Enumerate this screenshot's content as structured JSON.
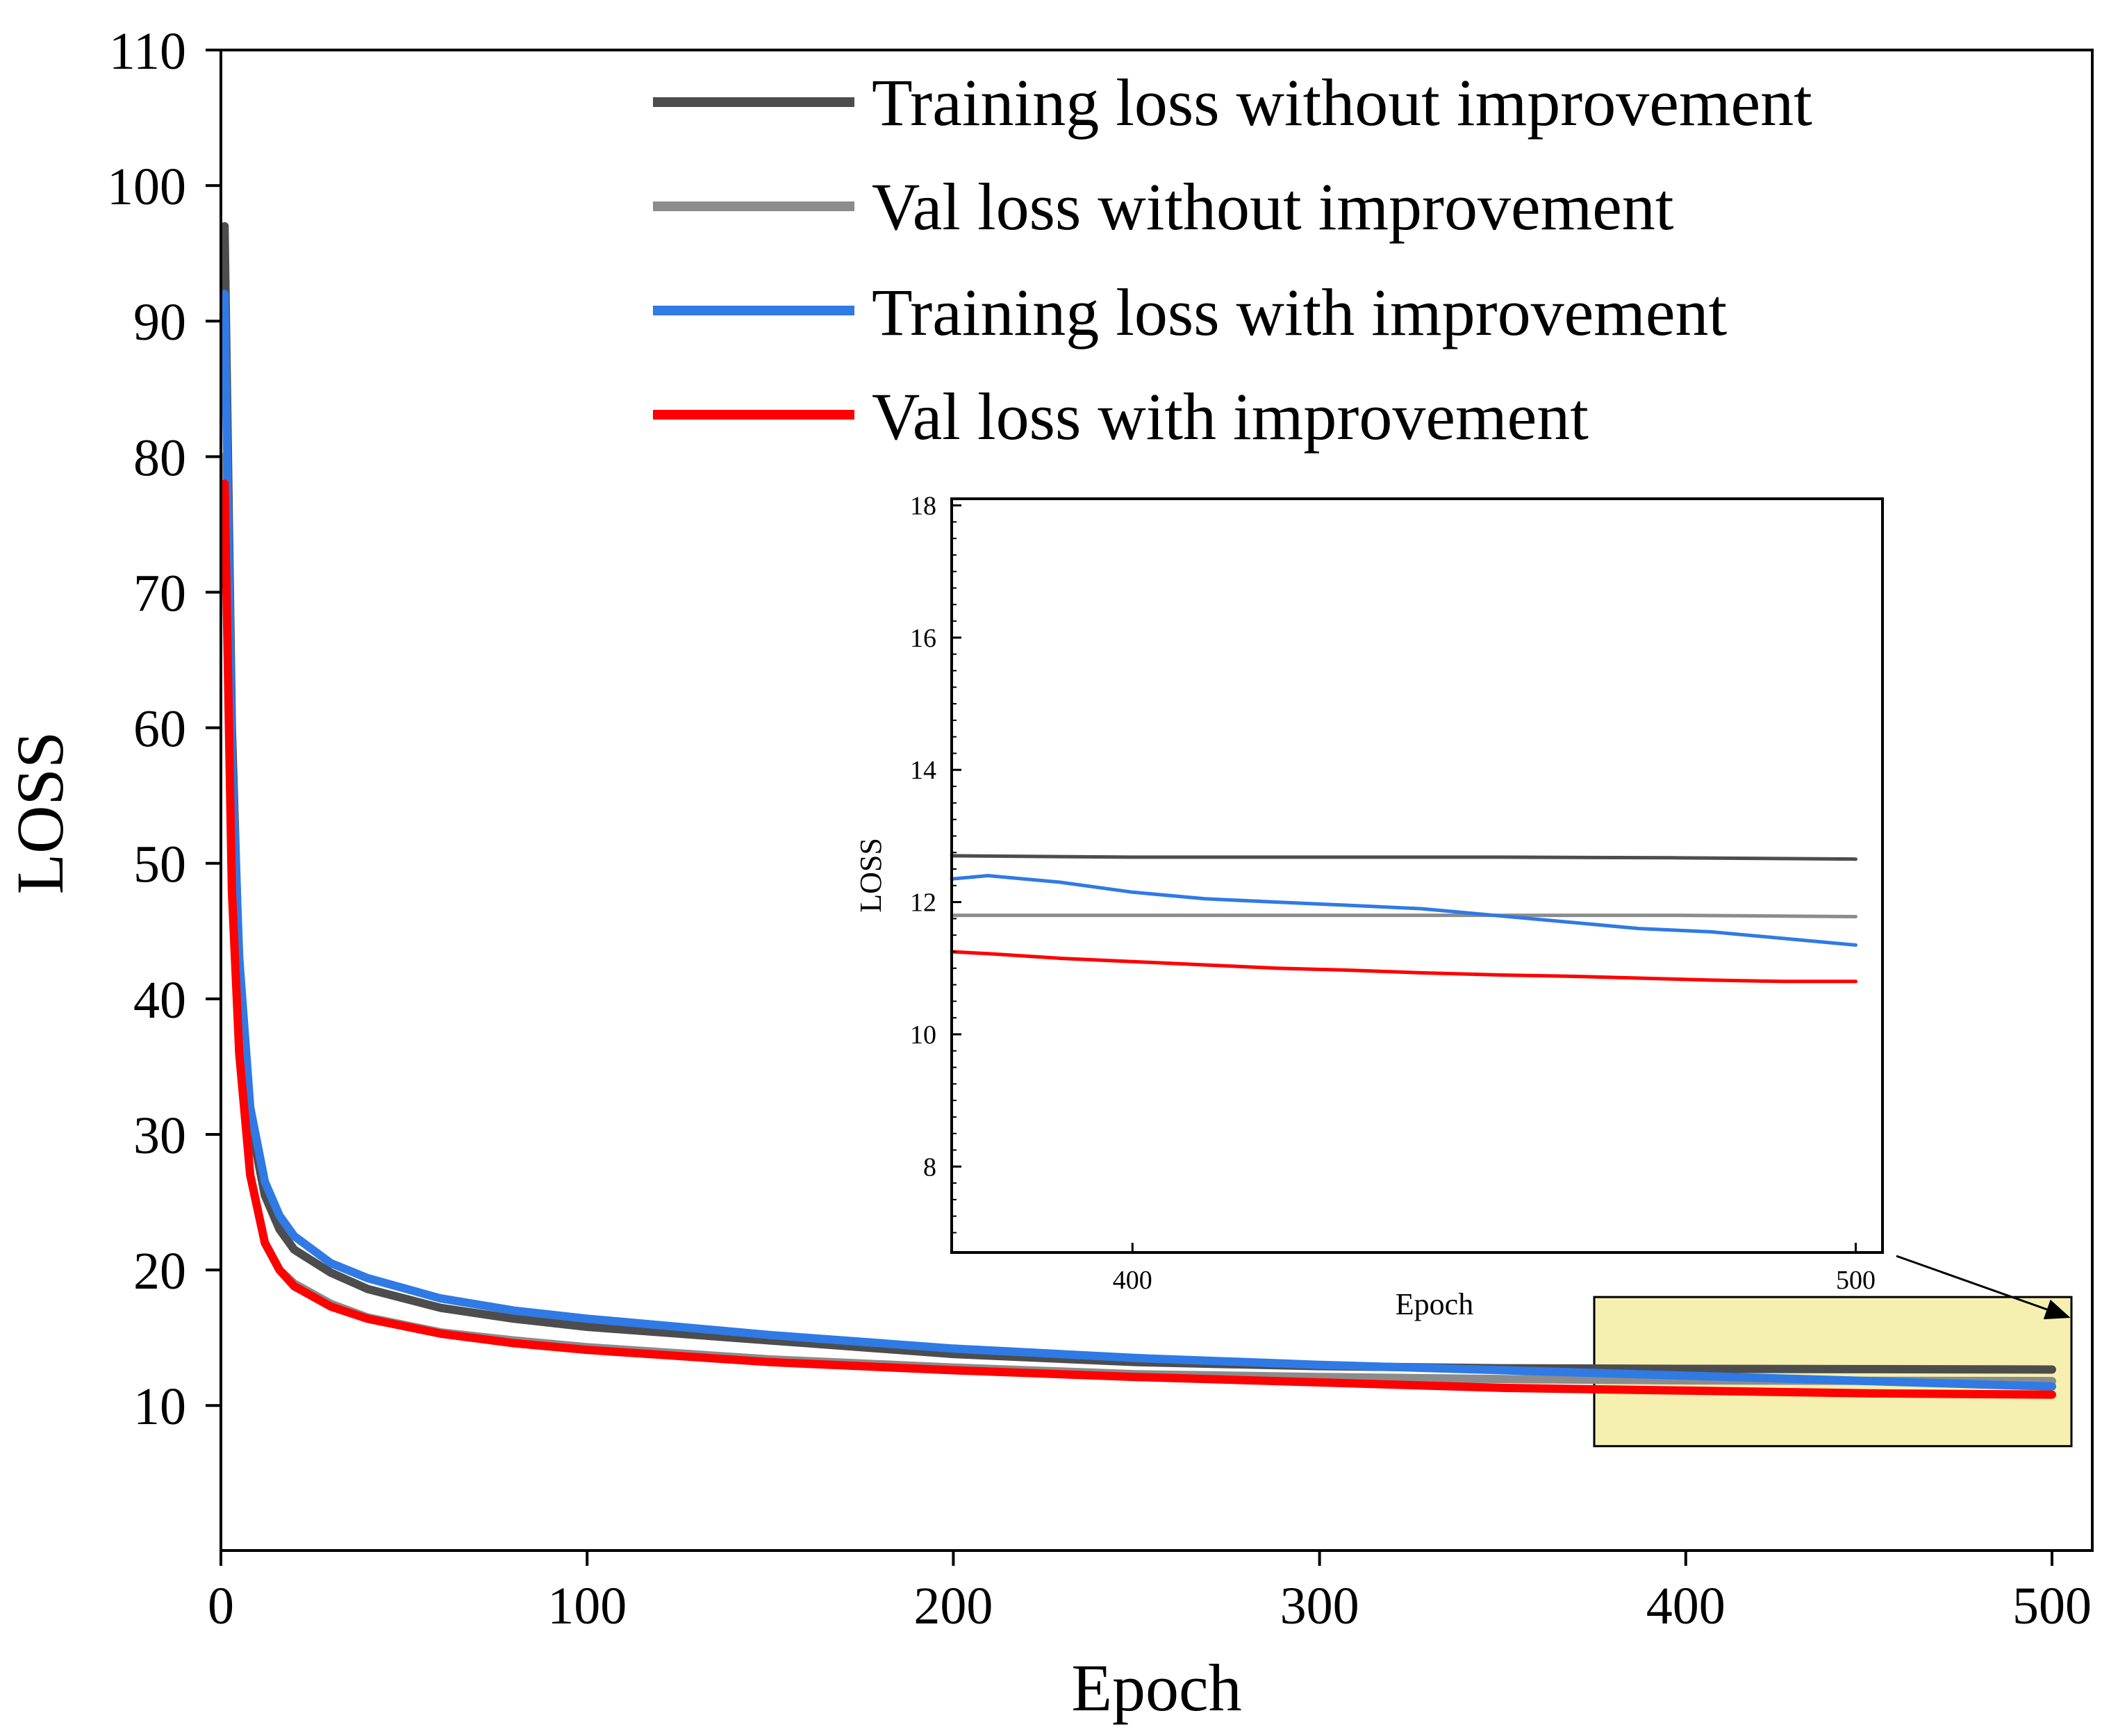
{
  "chart_data": {
    "type": "line",
    "xlabel": "Epoch",
    "ylabel": "LOSS",
    "xlim": [
      0,
      500
    ],
    "ylim": [
      0,
      110
    ],
    "xticks": [
      0,
      100,
      200,
      300,
      400,
      500
    ],
    "yticks": [
      10,
      20,
      30,
      40,
      50,
      60,
      70,
      80,
      90,
      100,
      110
    ],
    "grid": false,
    "legend_position": "top-right",
    "colors": {
      "train_without": "#4d4d4d",
      "val_without": "#8c8c8c",
      "train_with": "#2f7ae5",
      "val_with": "#ff0000",
      "zoom_box_fill": "#f5f0b0"
    },
    "series": [
      {
        "key": "train_without",
        "name": "Training loss without improvement",
        "color": "#4d4d4d",
        "x": [
          1,
          3,
          5,
          8,
          12,
          16,
          20,
          30,
          40,
          60,
          80,
          100,
          150,
          200,
          250,
          300,
          350,
          400,
          450,
          500
        ],
        "y": [
          97,
          60,
          42,
          31,
          25.5,
          23,
          21.5,
          19.8,
          18.6,
          17.2,
          16.4,
          15.8,
          14.8,
          13.8,
          13.2,
          12.9,
          12.75,
          12.7,
          12.68,
          12.65
        ]
      },
      {
        "key": "val_without",
        "name": "Val loss without improvement",
        "color": "#8c8c8c",
        "x": [
          1,
          3,
          5,
          8,
          12,
          16,
          20,
          30,
          40,
          60,
          80,
          100,
          150,
          200,
          250,
          300,
          350,
          400,
          450,
          500
        ],
        "y": [
          80,
          50,
          36,
          27,
          22,
          20,
          19,
          17.5,
          16.5,
          15.4,
          14.8,
          14.3,
          13.4,
          12.8,
          12.3,
          12.1,
          11.95,
          11.85,
          11.82,
          11.8
        ]
      },
      {
        "key": "train_with",
        "name": "Training loss with improvement",
        "color": "#2f7ae5",
        "x": [
          1,
          3,
          5,
          8,
          12,
          16,
          20,
          30,
          40,
          60,
          80,
          100,
          150,
          200,
          250,
          300,
          350,
          400,
          450,
          500
        ],
        "y": [
          92,
          58,
          43,
          32,
          26.5,
          24,
          22.5,
          20.5,
          19.4,
          17.9,
          17.0,
          16.4,
          15.2,
          14.2,
          13.5,
          13.0,
          12.6,
          12.2,
          11.8,
          11.4
        ]
      },
      {
        "key": "val_with",
        "name": "Val loss with improvement",
        "color": "#ff0000",
        "x": [
          1,
          3,
          5,
          8,
          12,
          16,
          20,
          30,
          40,
          60,
          80,
          100,
          150,
          200,
          250,
          300,
          350,
          400,
          450,
          500
        ],
        "y": [
          78,
          48,
          36,
          27,
          22,
          20,
          18.8,
          17.3,
          16.4,
          15.3,
          14.6,
          14.1,
          13.2,
          12.6,
          12.1,
          11.7,
          11.3,
          11.1,
          10.9,
          10.8
        ]
      }
    ],
    "zoom_region": {
      "x": [
        375,
        500
      ],
      "y": [
        7,
        18
      ]
    },
    "inset": {
      "xlabel": "Epoch",
      "ylabel": "LOSS",
      "xlim": [
        375,
        500
      ],
      "ylim": [
        7,
        18
      ],
      "xticks": [
        400,
        500
      ],
      "yticks": [
        8,
        10,
        12,
        14,
        16,
        18
      ],
      "series": [
        {
          "key": "train_without",
          "color": "#4d4d4d",
          "x": [
            375,
            400,
            425,
            450,
            475,
            500
          ],
          "y": [
            12.7,
            12.68,
            12.68,
            12.68,
            12.67,
            12.65
          ]
        },
        {
          "key": "val_without",
          "color": "#8c8c8c",
          "x": [
            375,
            400,
            425,
            450,
            475,
            500
          ],
          "y": [
            11.8,
            11.8,
            11.8,
            11.8,
            11.8,
            11.78
          ]
        },
        {
          "key": "train_with",
          "color": "#2f7ae5",
          "x": [
            375,
            380,
            390,
            400,
            410,
            420,
            430,
            440,
            450,
            460,
            470,
            480,
            490,
            500
          ],
          "y": [
            12.35,
            12.4,
            12.3,
            12.15,
            12.05,
            12.0,
            11.95,
            11.9,
            11.8,
            11.7,
            11.6,
            11.55,
            11.45,
            11.35
          ]
        },
        {
          "key": "val_with",
          "color": "#ff0000",
          "x": [
            375,
            380,
            390,
            400,
            410,
            420,
            430,
            440,
            450,
            460,
            470,
            480,
            490,
            500
          ],
          "y": [
            11.25,
            11.22,
            11.15,
            11.1,
            11.05,
            11.0,
            10.97,
            10.93,
            10.9,
            10.88,
            10.85,
            10.82,
            10.8,
            10.8
          ]
        }
      ]
    }
  }
}
